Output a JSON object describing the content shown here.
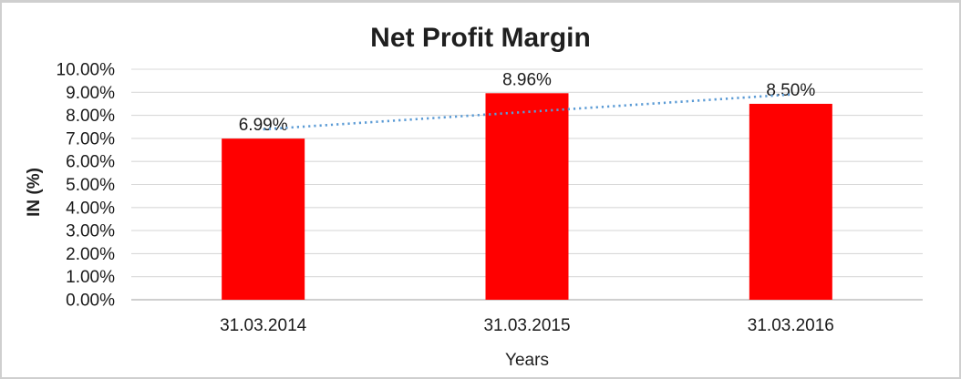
{
  "frame": {
    "border_color": "#cfcfcf",
    "background": "#ffffff"
  },
  "chart_data": {
    "type": "bar",
    "title": "Net Profit Margin",
    "xlabel": "Years",
    "ylabel": "IN (%)",
    "categories": [
      "31.03.2014",
      "31.03.2015",
      "31.03.2016"
    ],
    "values": [
      6.99,
      8.96,
      8.5
    ],
    "value_labels": [
      "6.99%",
      "8.96%",
      "8.50%"
    ],
    "ylim": [
      0,
      10
    ],
    "ytick_step": 1,
    "ytick_labels": [
      "0.00%",
      "1.00%",
      "2.00%",
      "3.00%",
      "4.00%",
      "5.00%",
      "6.00%",
      "7.00%",
      "8.00%",
      "9.00%",
      "10.00%"
    ],
    "grid": true,
    "legend": "none",
    "bar_color": "#FF0000",
    "gridline_color": "#D9D9D9",
    "axisline_color": "#BFBFBF",
    "text_color": "#1a1a1a",
    "trendline": {
      "type": "linear",
      "style": "dotted",
      "color": "#5B9BD5"
    }
  }
}
